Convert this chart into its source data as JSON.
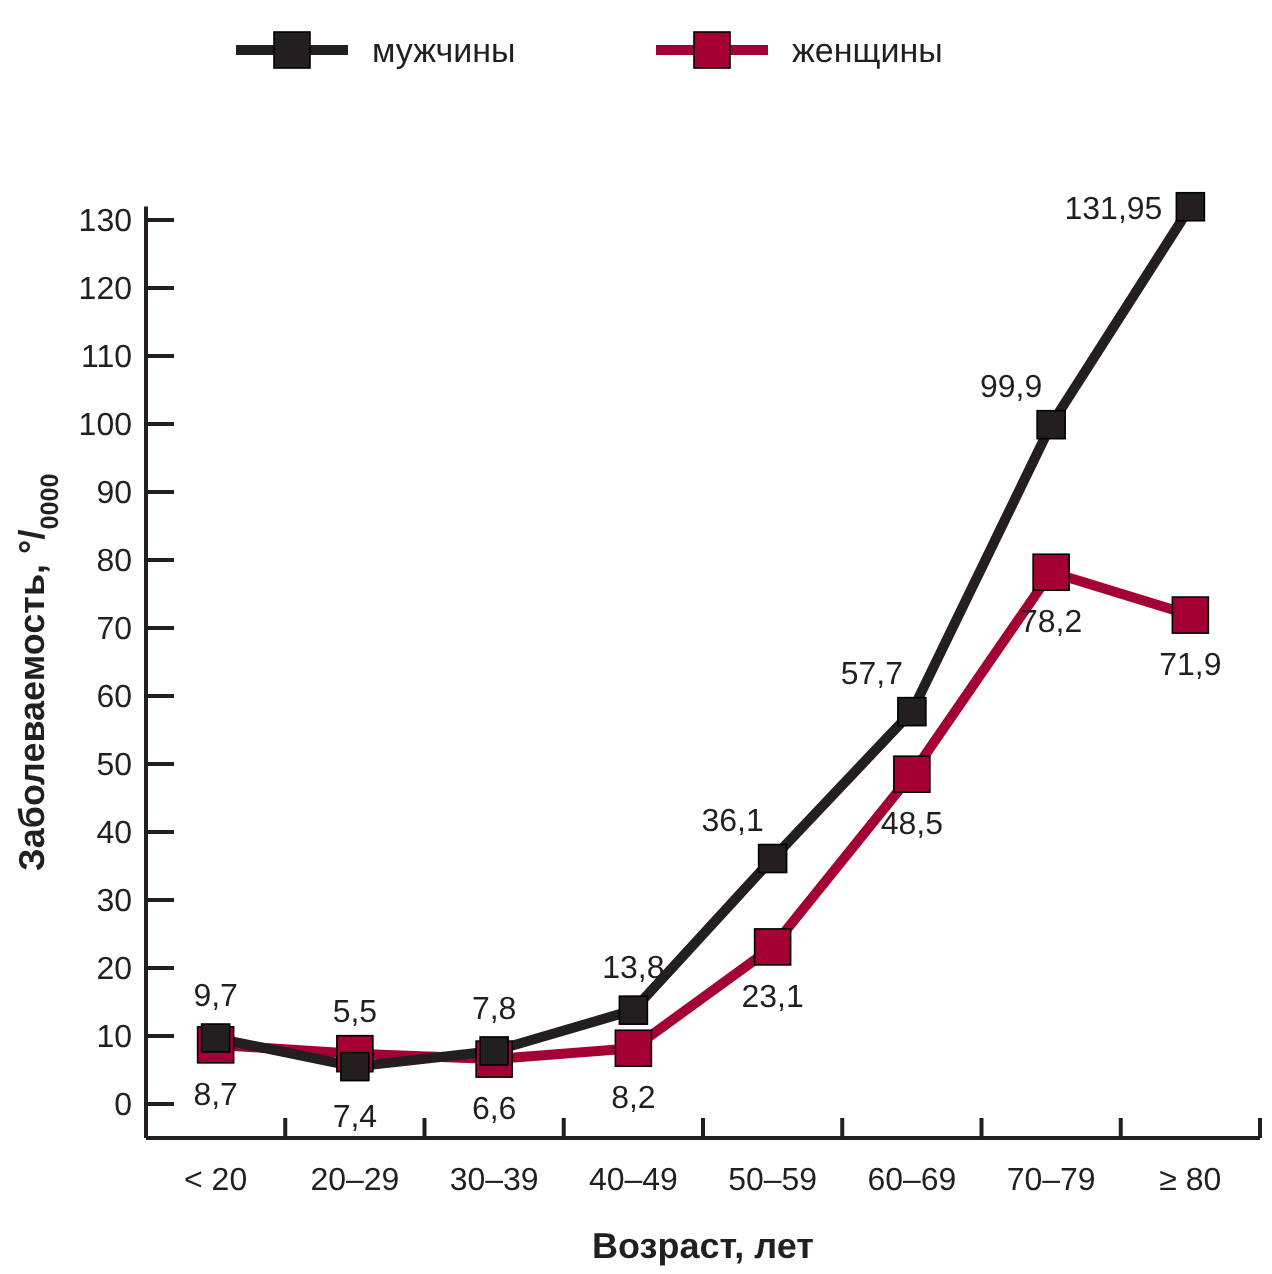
{
  "chart_data": {
    "type": "line",
    "xlabel": "Возраст, лет",
    "ylabel": "Заболеваемость, °/$_{0000}$",
    "categories": [
      "< 20",
      "20–29",
      "30–39",
      "40–49",
      "50–59",
      "60–69",
      "70–79",
      "≥ 80"
    ],
    "series": [
      {
        "name": "мужчины",
        "color": "#231f20",
        "values": [
          9.7,
          5.5,
          7.8,
          13.8,
          36.1,
          57.7,
          99.9,
          131.95
        ],
        "value_labels": [
          "9,7",
          "5,5",
          "7,8",
          "13,8",
          "36,1",
          "57,7",
          "99,9",
          "131,95"
        ]
      },
      {
        "name": "женщины",
        "color": "#a50034",
        "values": [
          8.7,
          7.4,
          6.6,
          8.2,
          23.1,
          48.5,
          78.2,
          71.9
        ],
        "value_labels": [
          "8,7",
          "7,4",
          "6,6",
          "8,2",
          "23,1",
          "48,5",
          "78,2",
          "71,9"
        ]
      }
    ],
    "ylim": [
      -5,
      132
    ],
    "yticks": [
      0,
      10,
      20,
      30,
      40,
      50,
      60,
      70,
      80,
      90,
      100,
      110,
      120,
      130
    ],
    "legend": "top",
    "marker": "square",
    "line_style": "solid"
  }
}
